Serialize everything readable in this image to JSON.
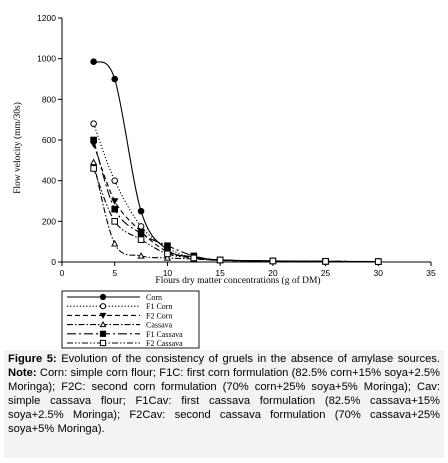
{
  "chart_data": {
    "type": "line",
    "xlabel": "Flours dry matter concentrations (g of DM)",
    "ylabel": "Flow velocity (mm/30s)",
    "xlim": [
      0,
      35
    ],
    "ylim": [
      0,
      1200
    ],
    "xticks": [
      "0",
      "5",
      "10",
      "15",
      "20",
      "25",
      "30",
      "35"
    ],
    "yticks": [
      "0",
      "200",
      "400",
      "600",
      "800",
      "1000",
      "1200"
    ],
    "grid": false,
    "legend_position": "below",
    "series": [
      {
        "name": "Corn",
        "marker": "filled-circle",
        "dash": "solid",
        "points": [
          [
            3,
            985
          ],
          [
            5,
            900
          ],
          [
            7.5,
            250
          ],
          [
            10,
            60
          ],
          [
            12.5,
            25
          ],
          [
            15,
            10
          ],
          [
            20,
            5
          ],
          [
            25,
            3
          ],
          [
            30,
            2
          ]
        ]
      },
      {
        "name": "F1 Corn",
        "marker": "open-circle",
        "dash": "dotted",
        "points": [
          [
            3,
            680
          ],
          [
            5,
            400
          ],
          [
            7.5,
            175
          ],
          [
            10,
            70
          ],
          [
            12.5,
            20
          ],
          [
            15,
            10
          ],
          [
            20,
            5
          ],
          [
            25,
            3
          ],
          [
            30,
            2
          ]
        ]
      },
      {
        "name": "F2 Corn",
        "marker": "filled-triangle-down",
        "dash": "dashed",
        "points": [
          [
            3,
            580
          ],
          [
            5,
            300
          ],
          [
            7.5,
            150
          ],
          [
            10,
            50
          ],
          [
            12.5,
            20
          ],
          [
            15,
            8
          ],
          [
            20,
            5
          ],
          [
            25,
            3
          ],
          [
            30,
            2
          ]
        ]
      },
      {
        "name": "Cassava",
        "marker": "open-triangle-up",
        "dash": "dashdot",
        "points": [
          [
            3,
            490
          ],
          [
            5,
            90
          ],
          [
            7.5,
            30
          ],
          [
            10,
            20
          ],
          [
            12.5,
            15
          ],
          [
            15,
            8
          ],
          [
            20,
            5
          ],
          [
            25,
            3
          ],
          [
            30,
            2
          ]
        ]
      },
      {
        "name": "F1 Cassava",
        "marker": "filled-square",
        "dash": "longdashdot",
        "points": [
          [
            3,
            600
          ],
          [
            5,
            260
          ],
          [
            7.5,
            140
          ],
          [
            10,
            80
          ],
          [
            12.5,
            30
          ],
          [
            15,
            10
          ],
          [
            20,
            5
          ],
          [
            25,
            3
          ],
          [
            30,
            2
          ]
        ]
      },
      {
        "name": "F2 Cassava",
        "marker": "open-square",
        "dash": "dashdotdot",
        "points": [
          [
            3,
            460
          ],
          [
            5,
            200
          ],
          [
            7.5,
            110
          ],
          [
            10,
            40
          ],
          [
            12.5,
            20
          ],
          [
            15,
            10
          ],
          [
            20,
            5
          ],
          [
            25,
            3
          ],
          [
            30,
            2
          ]
        ]
      }
    ]
  },
  "caption": {
    "figure_label": "Figure 5:",
    "text": " Evolution of the consistency of gruels in the absence of amylase sources. ",
    "note_label": "Note:",
    "note_text": " Corn: simple corn flour; F1C: first corn formulation (82.5% corn+15% soya+2.5% Moringa); F2C: second corn formulation (70% corn+25% soya+5% Moringa); Cav: simple cassava flour; F1Cav: first cassava formulation (82.5% cassava+15% soya+2.5% Moringa); F2Cav: second cassava formulation (70% cassava+25% soya+5% Moringa)."
  }
}
